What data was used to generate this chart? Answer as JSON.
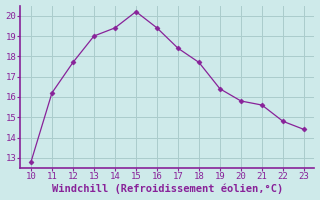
{
  "x": [
    10,
    11,
    12,
    13,
    14,
    15,
    16,
    17,
    18,
    19,
    20,
    21,
    22,
    23
  ],
  "y": [
    12.8,
    16.2,
    17.7,
    19.0,
    19.4,
    20.2,
    19.4,
    18.4,
    17.7,
    16.4,
    15.8,
    15.6,
    14.8,
    14.4
  ],
  "line_color": "#882299",
  "marker": "D",
  "marker_size": 2.5,
  "bg_color": "#ceeaea",
  "grid_color": "#aacccc",
  "xlabel": "Windchill (Refroidissement éolien,°C)",
  "xlabel_color": "#882299",
  "tick_color": "#882299",
  "xlim": [
    9.5,
    23.5
  ],
  "ylim": [
    12.5,
    20.5
  ],
  "xticks": [
    10,
    11,
    12,
    13,
    14,
    15,
    16,
    17,
    18,
    19,
    20,
    21,
    22,
    23
  ],
  "yticks": [
    13,
    14,
    15,
    16,
    17,
    18,
    19,
    20
  ],
  "spine_color": "#882299",
  "axis_linewidth": 1.2,
  "label_fontsize": 6.5,
  "xlabel_fontsize": 7.5
}
